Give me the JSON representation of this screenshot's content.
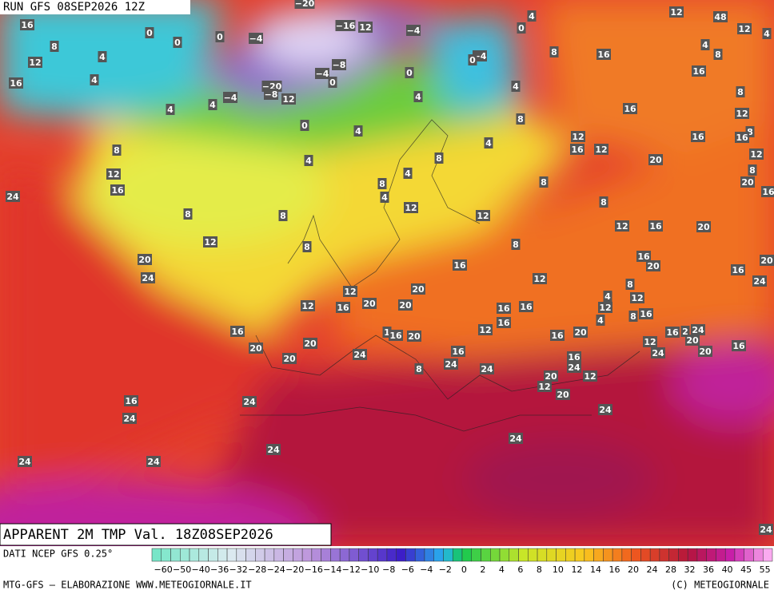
{
  "header": {
    "run": "RUN GFS 08SEP2026 12Z",
    "product": "APPARENT 2M TMP Val. 18Z08SEP2026"
  },
  "footer": {
    "source": "DATI NCEP GFS 0.25°",
    "credit": "MTG-GFS — ELABORAZIONE WWW.METEOGIORNALE.IT",
    "copyright": "(C) METEOGIORNALE"
  },
  "colorbar": {
    "labels": [
      "−60",
      "−50",
      "−40",
      "−36",
      "−32",
      "−28",
      "−24",
      "−20",
      "−16",
      "−14",
      "−12",
      "−10",
      "−8",
      "−6",
      "−4",
      "−2",
      "0",
      "2",
      "4",
      "6",
      "8",
      "10",
      "12",
      "14",
      "16",
      "20",
      "24",
      "28",
      "32",
      "36",
      "40",
      "45",
      "55"
    ]
  },
  "map_labels": [
    "−20",
    "12",
    "48",
    "16",
    "0",
    "0",
    "0",
    "−4",
    "−16",
    "12",
    "−4",
    "4",
    "0",
    "12",
    "4",
    "8",
    "4",
    "12",
    "−8",
    "−4",
    "0",
    "0",
    "−4",
    "0",
    "8",
    "16",
    "8",
    "4",
    "16",
    "4",
    "−20",
    "−8",
    "12",
    "−4",
    "4",
    "4",
    "4",
    "4",
    "16",
    "8",
    "16",
    "8",
    "12",
    "8",
    "0",
    "4",
    "12",
    "16",
    "8",
    "4",
    "16",
    "12",
    "12",
    "4",
    "8",
    "16",
    "20",
    "12",
    "4",
    "8",
    "16",
    "8",
    "8",
    "20",
    "24",
    "4",
    "8",
    "16",
    "12",
    "12",
    "8",
    "8",
    "12",
    "16",
    "20",
    "12",
    "8",
    "8",
    "20",
    "16",
    "16",
    "20",
    "20",
    "24",
    "12",
    "20",
    "16",
    "24",
    "12",
    "8",
    "4",
    "12",
    "20",
    "20",
    "12",
    "16",
    "16",
    "16",
    "12",
    "16",
    "8",
    "16",
    "4",
    "16",
    "1",
    "16",
    "20",
    "12",
    "16",
    "20",
    "16",
    "2",
    "24",
    "12",
    "20",
    "20",
    "20",
    "16",
    "24",
    "20",
    "16",
    "24",
    "20",
    "16",
    "24",
    "8",
    "24",
    "24",
    "20",
    "12",
    "12",
    "20",
    "16",
    "24",
    "24",
    "24",
    "24",
    "24",
    "24",
    "24",
    "24",
    "24",
    "24"
  ]
}
